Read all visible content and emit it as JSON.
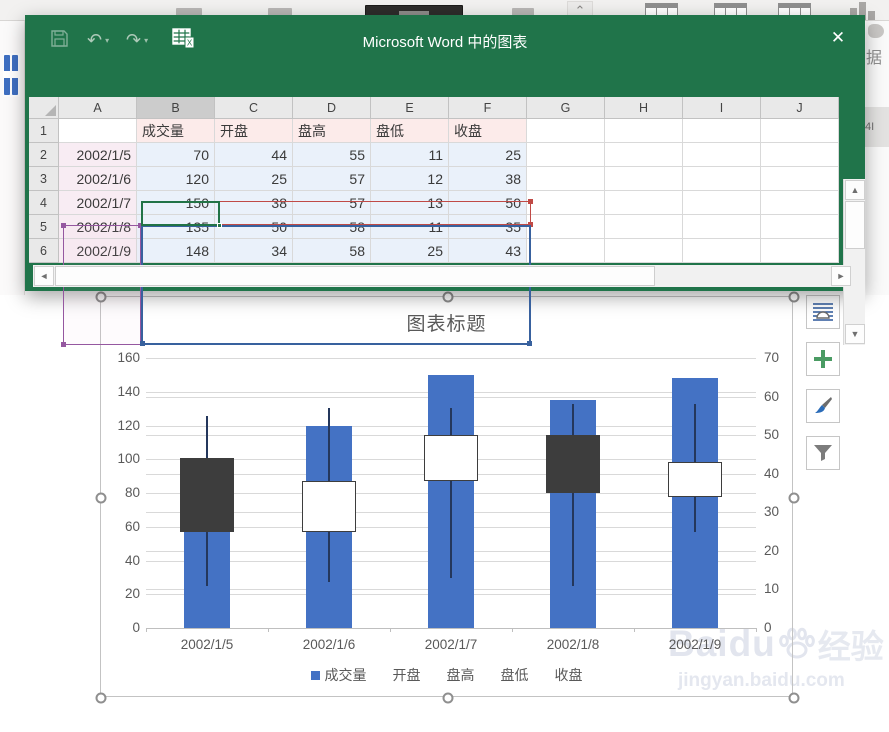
{
  "window": {
    "title": "Microsoft Word 中的图表",
    "close_glyph": "✕",
    "undo_glyph": "↶",
    "redo_glyph": "↷",
    "caret_glyph": "▾"
  },
  "background": {
    "data_text": "据",
    "fragment_text": "4I",
    "chevron_glyph": "⌃"
  },
  "sheet": {
    "column_headers": [
      "A",
      "B",
      "C",
      "D",
      "E",
      "F",
      "G",
      "H",
      "I",
      "J"
    ],
    "selected_column": "B",
    "row_numbers": [
      1,
      2,
      3,
      4,
      5,
      6
    ],
    "header_labels": [
      "成交量",
      "开盘",
      "盘高",
      "盘低",
      "收盘"
    ],
    "rows": [
      {
        "num": 2,
        "date": "2002/1/5",
        "values": [
          70,
          44,
          55,
          11,
          25
        ]
      },
      {
        "num": 3,
        "date": "2002/1/6",
        "values": [
          120,
          25,
          57,
          12,
          38
        ]
      },
      {
        "num": 4,
        "date": "2002/1/7",
        "values": [
          150,
          38,
          57,
          13,
          50
        ]
      },
      {
        "num": 5,
        "date": "2002/1/8",
        "values": [
          135,
          50,
          58,
          11,
          35
        ]
      },
      {
        "num": 6,
        "date": "2002/1/9",
        "values": [
          148,
          34,
          58,
          25,
          43
        ]
      }
    ],
    "scroll_up_glyph": "▲",
    "scroll_down_glyph": "▼",
    "scroll_left_glyph": "◄",
    "scroll_right_glyph": "►"
  },
  "chart_data": {
    "type": "bar",
    "subtype": "volume-open-high-low-close stock chart",
    "title": "图表标题",
    "categories": [
      "2002/1/5",
      "2002/1/6",
      "2002/1/7",
      "2002/1/8",
      "2002/1/9"
    ],
    "series": [
      {
        "name": "成交量",
        "axis": "left",
        "role": "volume",
        "values": [
          70,
          120,
          150,
          135,
          148
        ]
      },
      {
        "name": "开盘",
        "axis": "right",
        "role": "open",
        "values": [
          44,
          25,
          38,
          50,
          34
        ]
      },
      {
        "name": "盘高",
        "axis": "right",
        "role": "high",
        "values": [
          55,
          57,
          57,
          58,
          58
        ]
      },
      {
        "name": "盘低",
        "axis": "right",
        "role": "low",
        "values": [
          11,
          12,
          13,
          11,
          25
        ]
      },
      {
        "name": "收盘",
        "axis": "right",
        "role": "close",
        "values": [
          25,
          38,
          50,
          35,
          43
        ]
      }
    ],
    "left_axis": {
      "min": 0,
      "max": 160,
      "step": 20,
      "ticks": [
        0,
        20,
        40,
        60,
        80,
        100,
        120,
        140,
        160
      ]
    },
    "right_axis": {
      "min": 0,
      "max": 70,
      "step": 10,
      "ticks": [
        0,
        10,
        20,
        30,
        40,
        50,
        60,
        70
      ]
    },
    "legend": [
      "成交量",
      "开盘",
      "盘高",
      "盘低",
      "收盘"
    ],
    "legend_position": "bottom",
    "grid": true,
    "colors": {
      "volume_bar": "#4472c4",
      "down_box": "#3d3d3d",
      "up_box": "#ffffff",
      "box_border": "#3d3d3d",
      "whisker": "#24375c",
      "gridline": "#d9d9d9",
      "axis_text": "#595959"
    }
  },
  "watermark": {
    "brand": "Baidu",
    "suffix": "经验",
    "url": "jingyan.baidu.com"
  }
}
